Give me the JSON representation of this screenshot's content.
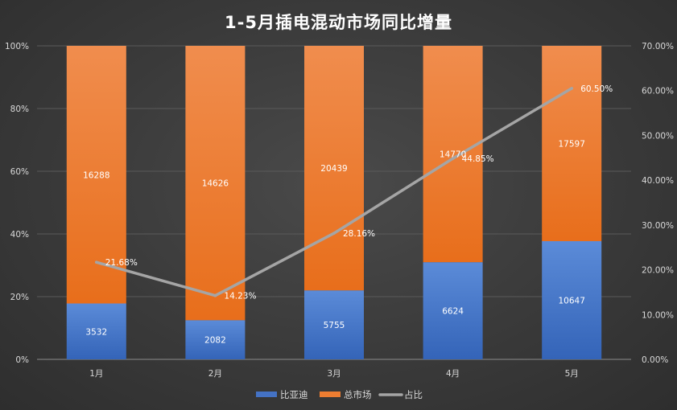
{
  "chart_data": {
    "type": "bar",
    "title": "1-5月插电混动市场同比增量",
    "categories": [
      "1月",
      "2月",
      "3月",
      "4月",
      "5月"
    ],
    "series": [
      {
        "name": "比亚迪",
        "type": "bar",
        "stacked": "percent",
        "axis": "left",
        "color": "#4472c4",
        "values": [
          3532,
          2082,
          5755,
          6624,
          10647
        ]
      },
      {
        "name": "总市场",
        "type": "bar",
        "stacked": "percent",
        "axis": "left",
        "color": "#ed7d31",
        "values": [
          16288,
          14626,
          20439,
          14770,
          17597
        ]
      },
      {
        "name": "占比",
        "type": "line",
        "axis": "right",
        "color": "#a5a5a5",
        "values": [
          21.68,
          14.23,
          28.16,
          44.85,
          60.5
        ]
      }
    ],
    "line_labels": [
      "21.68%",
      "14.23%",
      "28.16%",
      "44.85%",
      "60.50%"
    ],
    "left_axis": {
      "ylim": [
        0,
        100
      ],
      "ticks": [
        "0%",
        "20%",
        "40%",
        "60%",
        "80%",
        "100%"
      ]
    },
    "right_axis": {
      "ylim": [
        0,
        70
      ],
      "ticks": [
        "0.00%",
        "10.00%",
        "20.00%",
        "30.00%",
        "40.00%",
        "50.00%",
        "60.00%",
        "70.00%"
      ]
    },
    "grid": true,
    "legend_position": "bottom"
  }
}
